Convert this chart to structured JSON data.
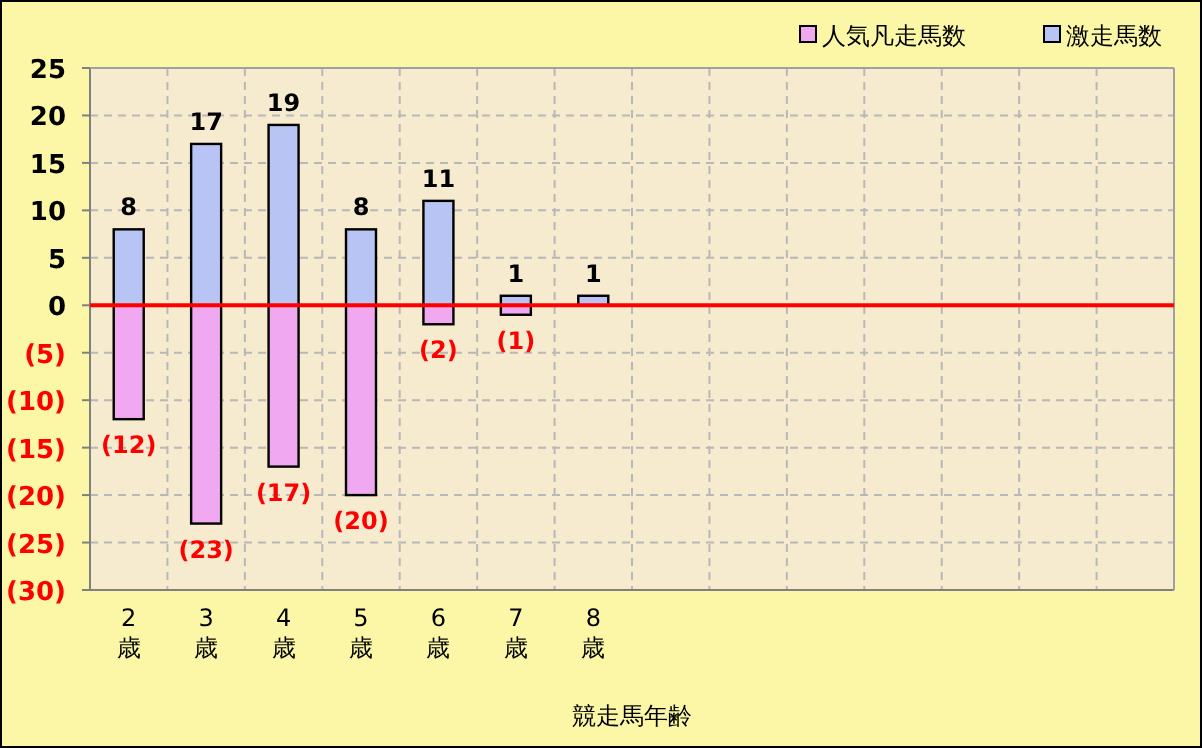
{
  "chart_data": {
    "type": "bar",
    "xlabel": "競走馬年齢",
    "stacked": true,
    "legend": "top right",
    "grid": true,
    "categories": [
      "2\n歳",
      "3\n歳",
      "4\n歳",
      "5\n歳",
      "6\n歳",
      "7\n歳",
      "8\n歳",
      null,
      null,
      null,
      null,
      null,
      null,
      null
    ],
    "series": [
      {
        "name": "人気凡走馬数",
        "color": "#f0a8f0",
        "values": [
          -12,
          -23,
          -17,
          -20,
          -2,
          -1,
          null,
          null,
          null,
          null,
          null,
          null,
          null,
          null
        ],
        "value_labels": [
          "(12)",
          "(23)",
          "(17)",
          "(20)",
          "(2)",
          "(1)",
          null,
          null,
          null,
          null,
          null,
          null,
          null,
          null
        ]
      },
      {
        "name": "激走馬数",
        "color": "#b8c4f4",
        "values": [
          8,
          17,
          19,
          8,
          11,
          1,
          1,
          null,
          null,
          null,
          null,
          null,
          null,
          null
        ],
        "value_labels": [
          "8",
          "17",
          "19",
          "8",
          "11",
          "1",
          "1",
          null,
          null,
          null,
          null,
          null,
          null,
          null
        ]
      }
    ],
    "ylim": [
      -30,
      25
    ],
    "yticks": [
      25,
      20,
      15,
      10,
      5,
      0,
      {
        "value": -5,
        "label": "(5)"
      },
      {
        "value": -10,
        "label": "(10)"
      },
      {
        "value": -15,
        "label": "(15)"
      },
      {
        "value": -20,
        "label": "(20)"
      },
      {
        "value": -25,
        "label": "(25)"
      },
      {
        "value": -30,
        "label": "(30)"
      }
    ],
    "ref_lines": [
      {
        "axis": "y",
        "value": 0,
        "color": "#ff0000"
      }
    ]
  }
}
